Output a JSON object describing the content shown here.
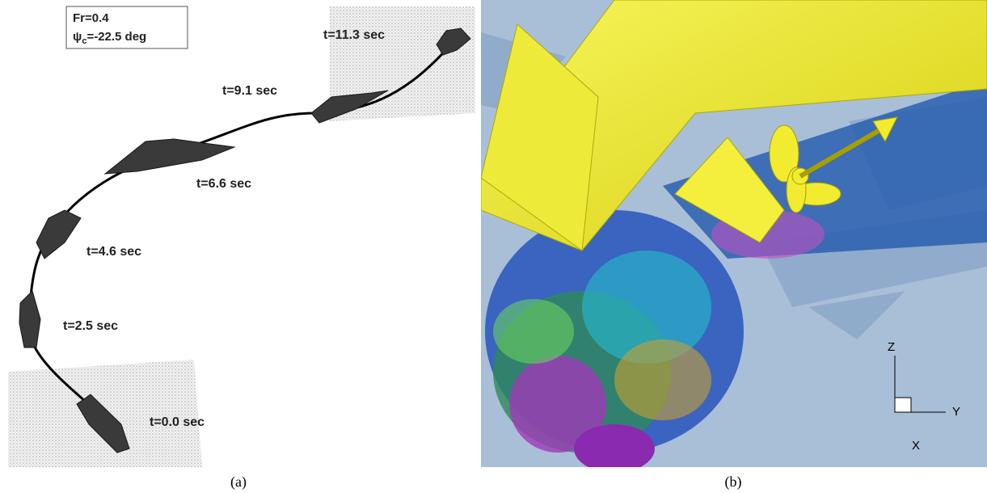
{
  "panel_a": {
    "legend": {
      "froude": "Fr=0.4",
      "heading_symbol": "ψ",
      "heading_subscript": "c",
      "heading_value": "=-22.5 deg"
    },
    "time_labels": [
      "t=11.3 sec",
      "t=9.1 sec",
      "t=6.6 sec",
      "t=4.6 sec",
      "t=2.5 sec",
      "t=0.0 sec"
    ]
  },
  "panel_b": {
    "axes": {
      "z": "Z",
      "y": "Y",
      "x": "X"
    }
  },
  "captions": [
    "(a)",
    "(b)"
  ]
}
